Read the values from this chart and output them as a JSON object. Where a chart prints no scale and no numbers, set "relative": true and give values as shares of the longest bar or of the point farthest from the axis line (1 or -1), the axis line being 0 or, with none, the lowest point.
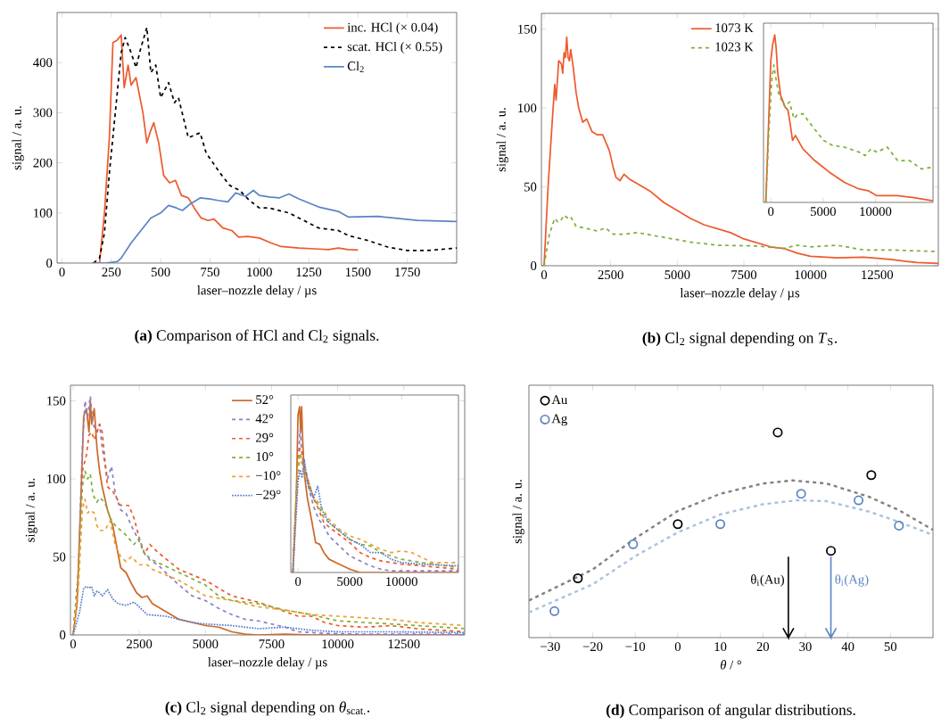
{
  "chart_data": [
    {
      "type": "line",
      "title": "**(a)** Comparison of HCl and Cl$_{2}$ signals.",
      "xlabel": "laser–nozzle delay / µs",
      "ylabel": "signal / a. u.",
      "xlim": [
        -25,
        2000
      ],
      "ylim": [
        0,
        500
      ],
      "xticks": [
        0,
        250,
        500,
        750,
        1000,
        1250,
        1500,
        1750
      ],
      "yticks": [
        0,
        100,
        200,
        300,
        400
      ],
      "legend": "top right",
      "series": [
        {
          "name": "inc. HCl (× 0.04)",
          "color": "#ee5a2f",
          "line_style": "solid",
          "x": [
            150,
            190,
            215,
            240,
            258,
            280,
            300,
            315,
            335,
            350,
            375,
            410,
            430,
            450,
            465,
            490,
            515,
            545,
            575,
            605,
            640,
            670,
            705,
            740,
            770,
            815,
            860,
            895,
            940,
            1000,
            1060,
            1110,
            1200,
            1300,
            1350,
            1400,
            1450,
            1500
          ],
          "values": [
            0,
            0,
            100,
            250,
            440,
            445,
            455,
            350,
            395,
            355,
            370,
            300,
            240,
            265,
            280,
            240,
            175,
            160,
            165,
            135,
            130,
            110,
            90,
            85,
            88,
            70,
            65,
            52,
            53,
            50,
            40,
            33,
            30,
            28,
            27,
            30,
            27,
            26
          ]
        },
        {
          "name": "scat. HCl (× 0.55)",
          "color": "#000000",
          "line_style": "dashed",
          "x": [
            160,
            190,
            215,
            240,
            270,
            300,
            320,
            350,
            375,
            400,
            430,
            450,
            475,
            500,
            540,
            570,
            590,
            640,
            700,
            730,
            800,
            850,
            900,
            950,
            1000,
            1050,
            1150,
            1250,
            1300,
            1400,
            1450,
            1550,
            1650,
            1750,
            1850,
            2000
          ],
          "values": [
            0,
            10,
            60,
            180,
            300,
            420,
            450,
            420,
            390,
            430,
            470,
            380,
            395,
            330,
            360,
            320,
            330,
            250,
            260,
            220,
            180,
            155,
            145,
            125,
            110,
            110,
            100,
            80,
            70,
            65,
            55,
            45,
            32,
            25,
            25,
            30
          ]
        },
        {
          "name": "Cl$_{2}$",
          "color": "#5b84c4",
          "line_style": "solid",
          "x": [
            150,
            220,
            280,
            300,
            350,
            400,
            450,
            500,
            540,
            580,
            610,
            650,
            700,
            750,
            790,
            840,
            880,
            930,
            970,
            1000,
            1050,
            1100,
            1150,
            1200,
            1300,
            1400,
            1450,
            1600,
            1800,
            2000
          ],
          "values": [
            0,
            0,
            3,
            10,
            40,
            65,
            90,
            100,
            115,
            110,
            105,
            118,
            130,
            128,
            125,
            122,
            140,
            133,
            145,
            135,
            132,
            130,
            138,
            128,
            112,
            103,
            92,
            93,
            85,
            83
          ]
        }
      ]
    },
    {
      "type": "line",
      "title": "**(b)** Cl$_{2}$ signal depending on *T*$_{S}$.",
      "xlabel": "laser–nozzle delay / µs",
      "ylabel": "signal / a. u.",
      "xlim": [
        -100,
        14800
      ],
      "ylim": [
        0,
        160
      ],
      "xticks": [
        0,
        2500,
        5000,
        7500,
        10000,
        12500
      ],
      "yticks": [
        0,
        50,
        100,
        150
      ],
      "legend": "top",
      "series": [
        {
          "name": "1073 K",
          "color": "#ee5a2f",
          "line_style": "solid",
          "x": [
            -100,
            0,
            150,
            300,
            400,
            450,
            550,
            650,
            700,
            750,
            800,
            850,
            900,
            950,
            1000,
            1100,
            1200,
            1300,
            1450,
            1600,
            1800,
            2000,
            2200,
            2450,
            2600,
            2700,
            2850,
            3000,
            3200,
            3500,
            4000,
            4500,
            5000,
            5500,
            6000,
            7000,
            7500,
            8500,
            9000,
            9500,
            10000,
            11000,
            12000,
            13000,
            14000,
            14800
          ],
          "values": [
            0,
            0,
            50,
            90,
            115,
            105,
            130,
            128,
            122,
            135,
            132,
            145,
            132,
            130,
            137,
            125,
            110,
            100,
            91,
            93,
            85,
            83,
            83,
            73,
            62,
            56,
            54,
            58,
            55,
            52,
            47,
            40,
            35,
            30,
            26,
            21,
            17,
            12,
            11,
            8,
            6,
            5,
            5.5,
            4,
            2,
            1.5
          ]
        },
        {
          "name": "1023 K",
          "color": "#7fb03c",
          "line_style": "dashed",
          "x": [
            0,
            200,
            400,
            500,
            600,
            750,
            900,
            1000,
            1200,
            1500,
            2000,
            2300,
            2600,
            3000,
            3500,
            4500,
            5500,
            6500,
            8000,
            9000,
            9500,
            10000,
            11000,
            12000,
            13000,
            14800
          ],
          "values": [
            0,
            20,
            30,
            28,
            28,
            32,
            30,
            31,
            25,
            24,
            22,
            24,
            20,
            20,
            21,
            18,
            15,
            13,
            12.5,
            11,
            13,
            12,
            13,
            10,
            10,
            9
          ]
        }
      ]
    },
    {
      "type": "line",
      "relative": true,
      "xlim": [
        -700,
        15500
      ],
      "xticks": [
        0,
        5000,
        10000
      ],
      "series": [
        {
          "color": "#ee5a2f",
          "line_style": "solid",
          "x": [
            -480,
            -200,
            0,
            170,
            370,
            510,
            650,
            935,
            1360,
            1640,
            1870,
            2070,
            2350,
            3060,
            4190,
            5610,
            7030,
            8440,
            9290,
            10140,
            12120,
            13540,
            15470
          ],
          "values": [
            0,
            0.5,
            0.85,
            0.94,
            1.0,
            0.92,
            0.78,
            0.64,
            0.57,
            0.55,
            0.46,
            0.37,
            0.4,
            0.32,
            0.25,
            0.18,
            0.12,
            0.08,
            0.07,
            0.04,
            0.04,
            0.03,
            0.01
          ]
        },
        {
          "color": "#7fb03c",
          "line_style": "dashed",
          "x": [
            -480,
            -200,
            85,
            280,
            510,
            790,
            1360,
            1780,
            2210,
            2490,
            3060,
            3900,
            5040,
            5890,
            7030,
            8440,
            9010,
            9580,
            10140,
            11130,
            12120,
            13260,
            14390,
            15470
          ],
          "values": [
            0,
            0.41,
            0.73,
            0.82,
            0.73,
            0.64,
            0.57,
            0.6,
            0.5,
            0.52,
            0.53,
            0.46,
            0.37,
            0.34,
            0.33,
            0.3,
            0.28,
            0.32,
            0.3,
            0.33,
            0.25,
            0.25,
            0.2,
            0.21
          ]
        }
      ]
    },
    {
      "type": "line",
      "title": "**(c)** Cl$_{2}$ signal depending on *θ*$_{scat.}$.",
      "xlabel": "laser–nozzle delay / µs",
      "ylabel": "signal / a. u.",
      "xlim": [
        -100,
        14800
      ],
      "ylim": [
        0,
        160
      ],
      "xticks": [
        0,
        2500,
        5000,
        7500,
        10000,
        12500
      ],
      "yticks": [
        0,
        50,
        100,
        150
      ],
      "legend": "top",
      "series": [
        {
          "name": "52°",
          "color": "#cc6a2a",
          "line_style": "solid",
          "x": [
            0,
            150,
            300,
            400,
            500,
            600,
            650,
            700,
            800,
            900,
            1000,
            1100,
            1300,
            1500,
            1700,
            1800,
            2000,
            2200,
            2400,
            2600,
            2800,
            3000,
            3500,
            4000,
            5000,
            5500,
            6000,
            6500,
            7000,
            8000,
            9000,
            14800
          ],
          "values": [
            0,
            20,
            90,
            140,
            145,
            130,
            150,
            135,
            145,
            120,
            105,
            95,
            80,
            70,
            52,
            43,
            40,
            33,
            27,
            24,
            25,
            20,
            15,
            10,
            6,
            5,
            2,
            0.5,
            0,
            0.5,
            0,
            0
          ]
        },
        {
          "name": "42°",
          "color": "#8a7fc8",
          "line_style": "dashed",
          "x": [
            0,
            200,
            350,
            450,
            550,
            650,
            750,
            900,
            1000,
            1100,
            1300,
            1450,
            1600,
            1800,
            2000,
            2200,
            2500,
            2700,
            2900,
            3200,
            3800,
            4500,
            5000,
            5500,
            6000,
            6500,
            7000,
            7500,
            8000,
            8500,
            9500,
            11000,
            14800
          ],
          "values": [
            0,
            40,
            120,
            150,
            140,
            153,
            135,
            130,
            135,
            120,
            100,
            108,
            90,
            80,
            78,
            70,
            60,
            52,
            48,
            45,
            35,
            25,
            22,
            17,
            13,
            10,
            9,
            7,
            5,
            2,
            1,
            0.5,
            0.5
          ]
        },
        {
          "name": "29°",
          "color": "#f05a28",
          "line_style": "dashed",
          "x": [
            0,
            200,
            350,
            500,
            600,
            700,
            800,
            900,
            1000,
            1100,
            1300,
            1500,
            1800,
            2100,
            2300,
            2500,
            2700,
            2900,
            3200,
            4000,
            5000,
            5500,
            6000,
            7000,
            7500,
            8500,
            9000,
            9500,
            10000,
            11000,
            12000,
            13000,
            14800
          ],
          "values": [
            0,
            40,
            105,
            115,
            128,
            130,
            125,
            130,
            135,
            130,
            95,
            92,
            83,
            83,
            75,
            62,
            52,
            58,
            53,
            42,
            35,
            30,
            25,
            21,
            18,
            12,
            12,
            8,
            6,
            5,
            6,
            4,
            2
          ]
        },
        {
          "name": "10°",
          "color": "#7fb03c",
          "line_style": "dashed",
          "x": [
            0,
            200,
            350,
            450,
            550,
            650,
            750,
            900,
            1000,
            1200,
            1400,
            1600,
            1800,
            2000,
            2300,
            2500,
            2700,
            3000,
            4000,
            5000,
            5500,
            6000,
            7000,
            8000,
            9000,
            10000,
            11000,
            12000,
            13000,
            14800
          ],
          "values": [
            0,
            40,
            95,
            105,
            100,
            103,
            90,
            85,
            88,
            85,
            75,
            70,
            67,
            64,
            58,
            62,
            52,
            48,
            40,
            32,
            25,
            22,
            20,
            16,
            13,
            9,
            8,
            7,
            6,
            4
          ]
        },
        {
          "name": "−10°",
          "color": "#f0a030",
          "line_style": "dashed",
          "x": [
            0,
            200,
            350,
            450,
            550,
            650,
            800,
            900,
            1000,
            1200,
            1400,
            1600,
            1800,
            2000,
            2200,
            2500,
            2800,
            3000,
            4000,
            5000,
            6000,
            7000,
            8000,
            9000,
            10000,
            11000,
            12000,
            13000,
            14800
          ],
          "values": [
            0,
            30,
            80,
            87,
            78,
            80,
            78,
            70,
            67,
            67,
            73,
            57,
            50,
            47,
            50,
            45,
            45,
            42,
            35,
            25,
            22,
            18,
            16,
            13,
            12,
            11,
            10,
            8,
            6
          ]
        },
        {
          "name": "−29°",
          "color": "#5b7fcf",
          "line_style": "dotted",
          "x": [
            0,
            250,
            400,
            500,
            600,
            700,
            800,
            900,
            1000,
            1100,
            1300,
            1500,
            1700,
            2000,
            2300,
            2500,
            2800,
            3500,
            4500,
            5000,
            6000,
            7000,
            8000,
            9000,
            10000,
            12000,
            14800
          ],
          "values": [
            0,
            15,
            30,
            31,
            30,
            31,
            25,
            28,
            27,
            25,
            29,
            23,
            20,
            19,
            21,
            18,
            13,
            12,
            8,
            7,
            6,
            4,
            5,
            3,
            2,
            2,
            1.5
          ]
        }
      ]
    },
    {
      "type": "line",
      "relative": true,
      "xlim": [
        -700,
        15500
      ],
      "xticks": [
        0,
        5000,
        10000
      ],
      "series": [
        {
          "color": "#cc6a2a",
          "line_style": "solid",
          "x": [
            -500,
            -150,
            0,
            150,
            250,
            350,
            450,
            600,
            900,
            1300,
            1700,
            2100,
            2500,
            3000,
            4000,
            5000,
            6000,
            15500
          ],
          "values": [
            0,
            0.5,
            0.95,
            1.0,
            0.85,
            1.0,
            0.8,
            0.6,
            0.45,
            0.32,
            0.18,
            0.17,
            0.12,
            0.08,
            0.05,
            0.02,
            0,
            0
          ]
        },
        {
          "color": "#8a7fc8",
          "line_style": "dashed",
          "x": [
            -500,
            0,
            200,
            400,
            700,
            1000,
            1500,
            2000,
            2500,
            3000,
            4000,
            5000,
            6000,
            7000,
            8000,
            9000,
            15500
          ],
          "values": [
            0,
            0.65,
            0.86,
            0.7,
            0.6,
            0.52,
            0.4,
            0.32,
            0.28,
            0.22,
            0.16,
            0.1,
            0.07,
            0.04,
            0.02,
            0.01,
            0.01
          ]
        },
        {
          "color": "#f05a28",
          "line_style": "dashed",
          "x": [
            -500,
            0,
            200,
            400,
            600,
            1000,
            1500,
            2000,
            2500,
            3500,
            5000,
            6000,
            7000,
            8000,
            10000,
            12000,
            15500
          ],
          "values": [
            0,
            0.7,
            0.75,
            0.73,
            0.65,
            0.55,
            0.45,
            0.38,
            0.3,
            0.25,
            0.18,
            0.12,
            0.09,
            0.07,
            0.05,
            0.04,
            0.02
          ]
        },
        {
          "color": "#7fb03c",
          "line_style": "dashed",
          "x": [
            -500,
            0,
            200,
            500,
            1000,
            1500,
            2000,
            2500,
            3000,
            4000,
            5000,
            6000,
            7000,
            8000,
            10000,
            12000,
            15500
          ],
          "values": [
            0,
            0.68,
            0.72,
            0.65,
            0.55,
            0.45,
            0.4,
            0.33,
            0.3,
            0.25,
            0.2,
            0.17,
            0.16,
            0.12,
            0.08,
            0.06,
            0.03
          ]
        },
        {
          "color": "#f0a030",
          "line_style": "dashed",
          "x": [
            -500,
            0,
            200,
            500,
            1000,
            1500,
            2000,
            2500,
            3000,
            4000,
            5000,
            6000,
            7000,
            8000,
            9000,
            10000,
            11000,
            12000,
            13000,
            15500
          ],
          "values": [
            0,
            0.6,
            0.7,
            0.62,
            0.53,
            0.45,
            0.42,
            0.37,
            0.32,
            0.26,
            0.22,
            0.2,
            0.17,
            0.14,
            0.12,
            0.13,
            0.12,
            0.09,
            0.06,
            0.06
          ]
        },
        {
          "color": "#5b7fcf",
          "line_style": "dotted",
          "x": [
            -500,
            0,
            200,
            400,
            600,
            1000,
            1500,
            1900,
            2300,
            3000,
            4000,
            5000,
            6000,
            7000,
            8000,
            9000,
            10000,
            12000,
            15500
          ],
          "values": [
            0,
            0.55,
            0.62,
            0.57,
            0.68,
            0.52,
            0.45,
            0.52,
            0.38,
            0.3,
            0.25,
            0.2,
            0.17,
            0.12,
            0.12,
            0.08,
            0.06,
            0.05,
            0.04
          ]
        }
      ]
    },
    {
      "type": "scatter",
      "relative": true,
      "title": "**(d)** Comparison of angular distributions.",
      "xlabel": "*θ* / °",
      "ylabel": "signal / a. u.",
      "xlim": [
        -35,
        60
      ],
      "xticks": [
        {
          "value": -30,
          "label": "−30"
        },
        {
          "value": -20,
          "label": "−20"
        },
        {
          "value": -10,
          "label": "−10"
        },
        0,
        10,
        20,
        30,
        40,
        50
      ],
      "legend": "top left",
      "ref_lines": [
        {
          "axis": "x",
          "value": 26,
          "label": "θ$_{i}$(Au)",
          "color": "#000000"
        },
        {
          "axis": "x",
          "value": 36,
          "label": "θ$_{i}$(Ag)",
          "color": "#5b84c4"
        }
      ],
      "series": [
        {
          "name": "Au",
          "color": "#000000",
          "marker": "circle",
          "x": [
            -23.5,
            0,
            23.5,
            36,
            45.5
          ],
          "values": [
            0.289,
            0.553,
            1,
            0.423,
            0.792
          ]
        },
        {
          "name": "Ag",
          "color": "#5b84c4",
          "marker": "circle",
          "x": [
            -29,
            -10.5,
            10,
            29,
            42.5,
            52
          ],
          "values": [
            0.129,
            0.455,
            0.553,
            0.701,
            0.669,
            0.546
          ]
        },
        {
          "type": "line",
          "color": "#808080",
          "line_style": "dashed",
          "x": [
            -35,
            -20,
            -10,
            0,
            10,
            20,
            27,
            35,
            45,
            52,
            60
          ],
          "values": [
            0.181,
            0.332,
            0.484,
            0.617,
            0.701,
            0.751,
            0.766,
            0.751,
            0.686,
            0.621,
            0.525
          ]
        },
        {
          "type": "line",
          "color": "#a9c0e0",
          "line_style": "dashed",
          "x": [
            -35,
            -20,
            -10,
            0,
            10,
            20,
            28,
            35,
            45,
            52,
            60
          ],
          "values": [
            0.123,
            0.26,
            0.397,
            0.513,
            0.6,
            0.65,
            0.669,
            0.665,
            0.614,
            0.564,
            0.5
          ]
        }
      ]
    }
  ]
}
